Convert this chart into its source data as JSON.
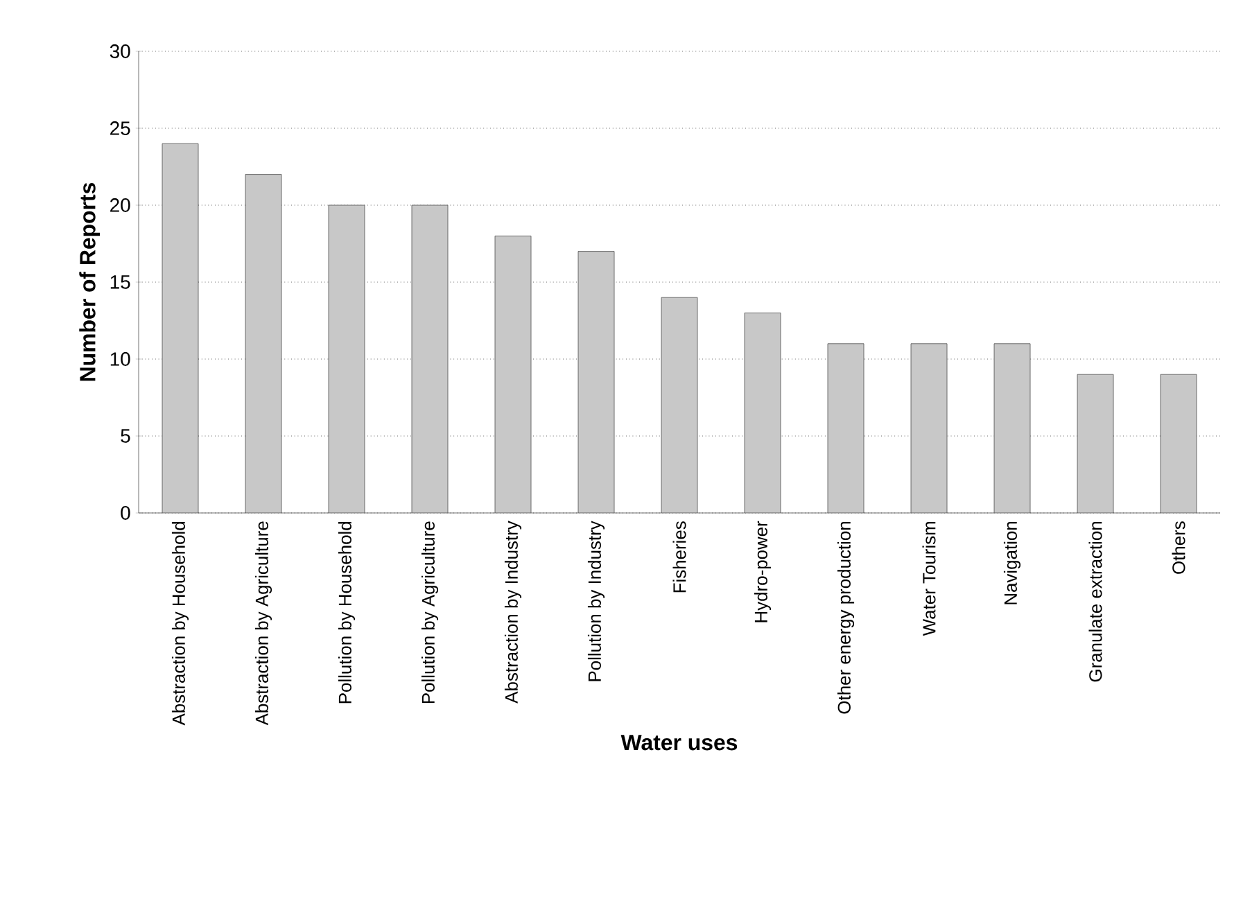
{
  "chart_data": {
    "type": "bar",
    "xlabel": "Water uses",
    "ylabel": "Number of Reports",
    "categories": [
      "Abstraction by Household",
      "Abstraction by Agriculture",
      "Pollution by Household",
      "Pollution by Agriculture",
      "Abstraction by Industry",
      "Pollution by Industry",
      "Fisheries",
      "Hydro-power",
      "Other energy production",
      "Water Tourism",
      "Navigation",
      "Granulate extraction",
      "Others"
    ],
    "values": [
      24,
      22,
      20,
      20,
      18,
      17,
      14,
      13,
      11,
      11,
      11,
      9,
      9
    ],
    "color": "#c8c8c8",
    "ylim": [
      0,
      30
    ],
    "yticks": [
      0,
      5,
      10,
      15,
      20,
      25,
      30
    ],
    "grid": "y"
  }
}
